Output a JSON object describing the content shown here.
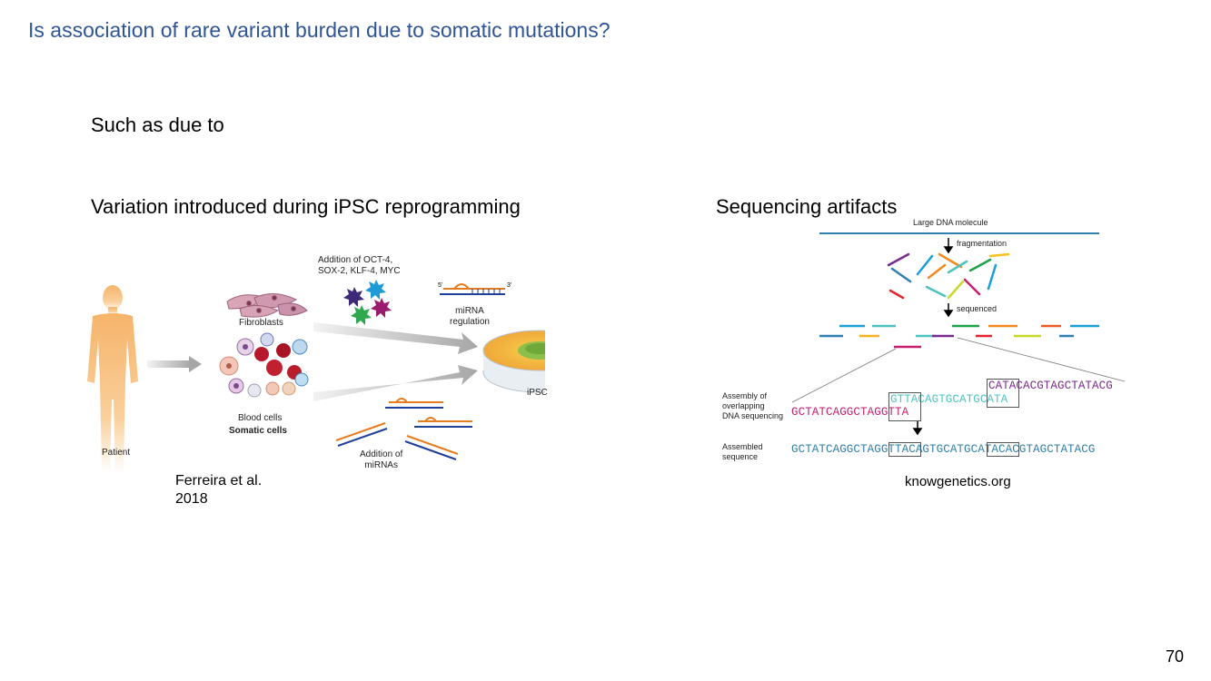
{
  "slide": {
    "title": "Is association of rare variant burden due to somatic mutations?",
    "intro": "Such as due to",
    "page_number": "70"
  },
  "left_section": {
    "heading": "Variation introduced during iPSC reprogramming",
    "figure": {
      "patient_label": "Patient",
      "fibroblasts_label": "Fibroblasts",
      "blood_cells_label": "Blood cells",
      "somatic_cells_label": "Somatic cells",
      "factors_line1": "Addition of OCT-4,",
      "factors_line2": "SOX-2, KLF-4, MYC",
      "mirna_line1": "miRNA",
      "mirna_line2": "regulation",
      "ipsc_label": "iPSC",
      "addition_line1": "Addition of",
      "addition_line2": "miRNAs",
      "five_prime": "5'",
      "three_prime": "3'"
    },
    "citation_line1": "Ferreira et al.",
    "citation_line2": "2018"
  },
  "right_section": {
    "heading": "Sequencing artifacts",
    "figure": {
      "large_dna_label": "Large DNA molecule",
      "fragmentation_label": "fragmentation",
      "sequenced_label": "sequenced",
      "assembly_line1": "Assembly of",
      "assembly_line2": "overlapping",
      "assembly_line3": "DNA sequencing",
      "assembled_line1": "Assembled",
      "assembled_line2": "sequence",
      "read_top": "CATACACGTAGCTATACG",
      "read_mid": "GTTACAGTGCATGCATA",
      "read_low": "GCTATCAGGCTAGGTTA",
      "assembled_seq": "GCTATCAGGCTAGGTTACAGTGCATGCATACACGTAGCTATACG"
    },
    "citation": "knowgenetics.org"
  },
  "colors": {
    "title": "#2f5597",
    "read_top": "#7b2a8c",
    "read_mid": "#4cc3c0",
    "read_low": "#c71e6f",
    "assembled": "#2f7fa8",
    "dna_line": "#2f7fb0",
    "skin": "#f6b46b"
  }
}
